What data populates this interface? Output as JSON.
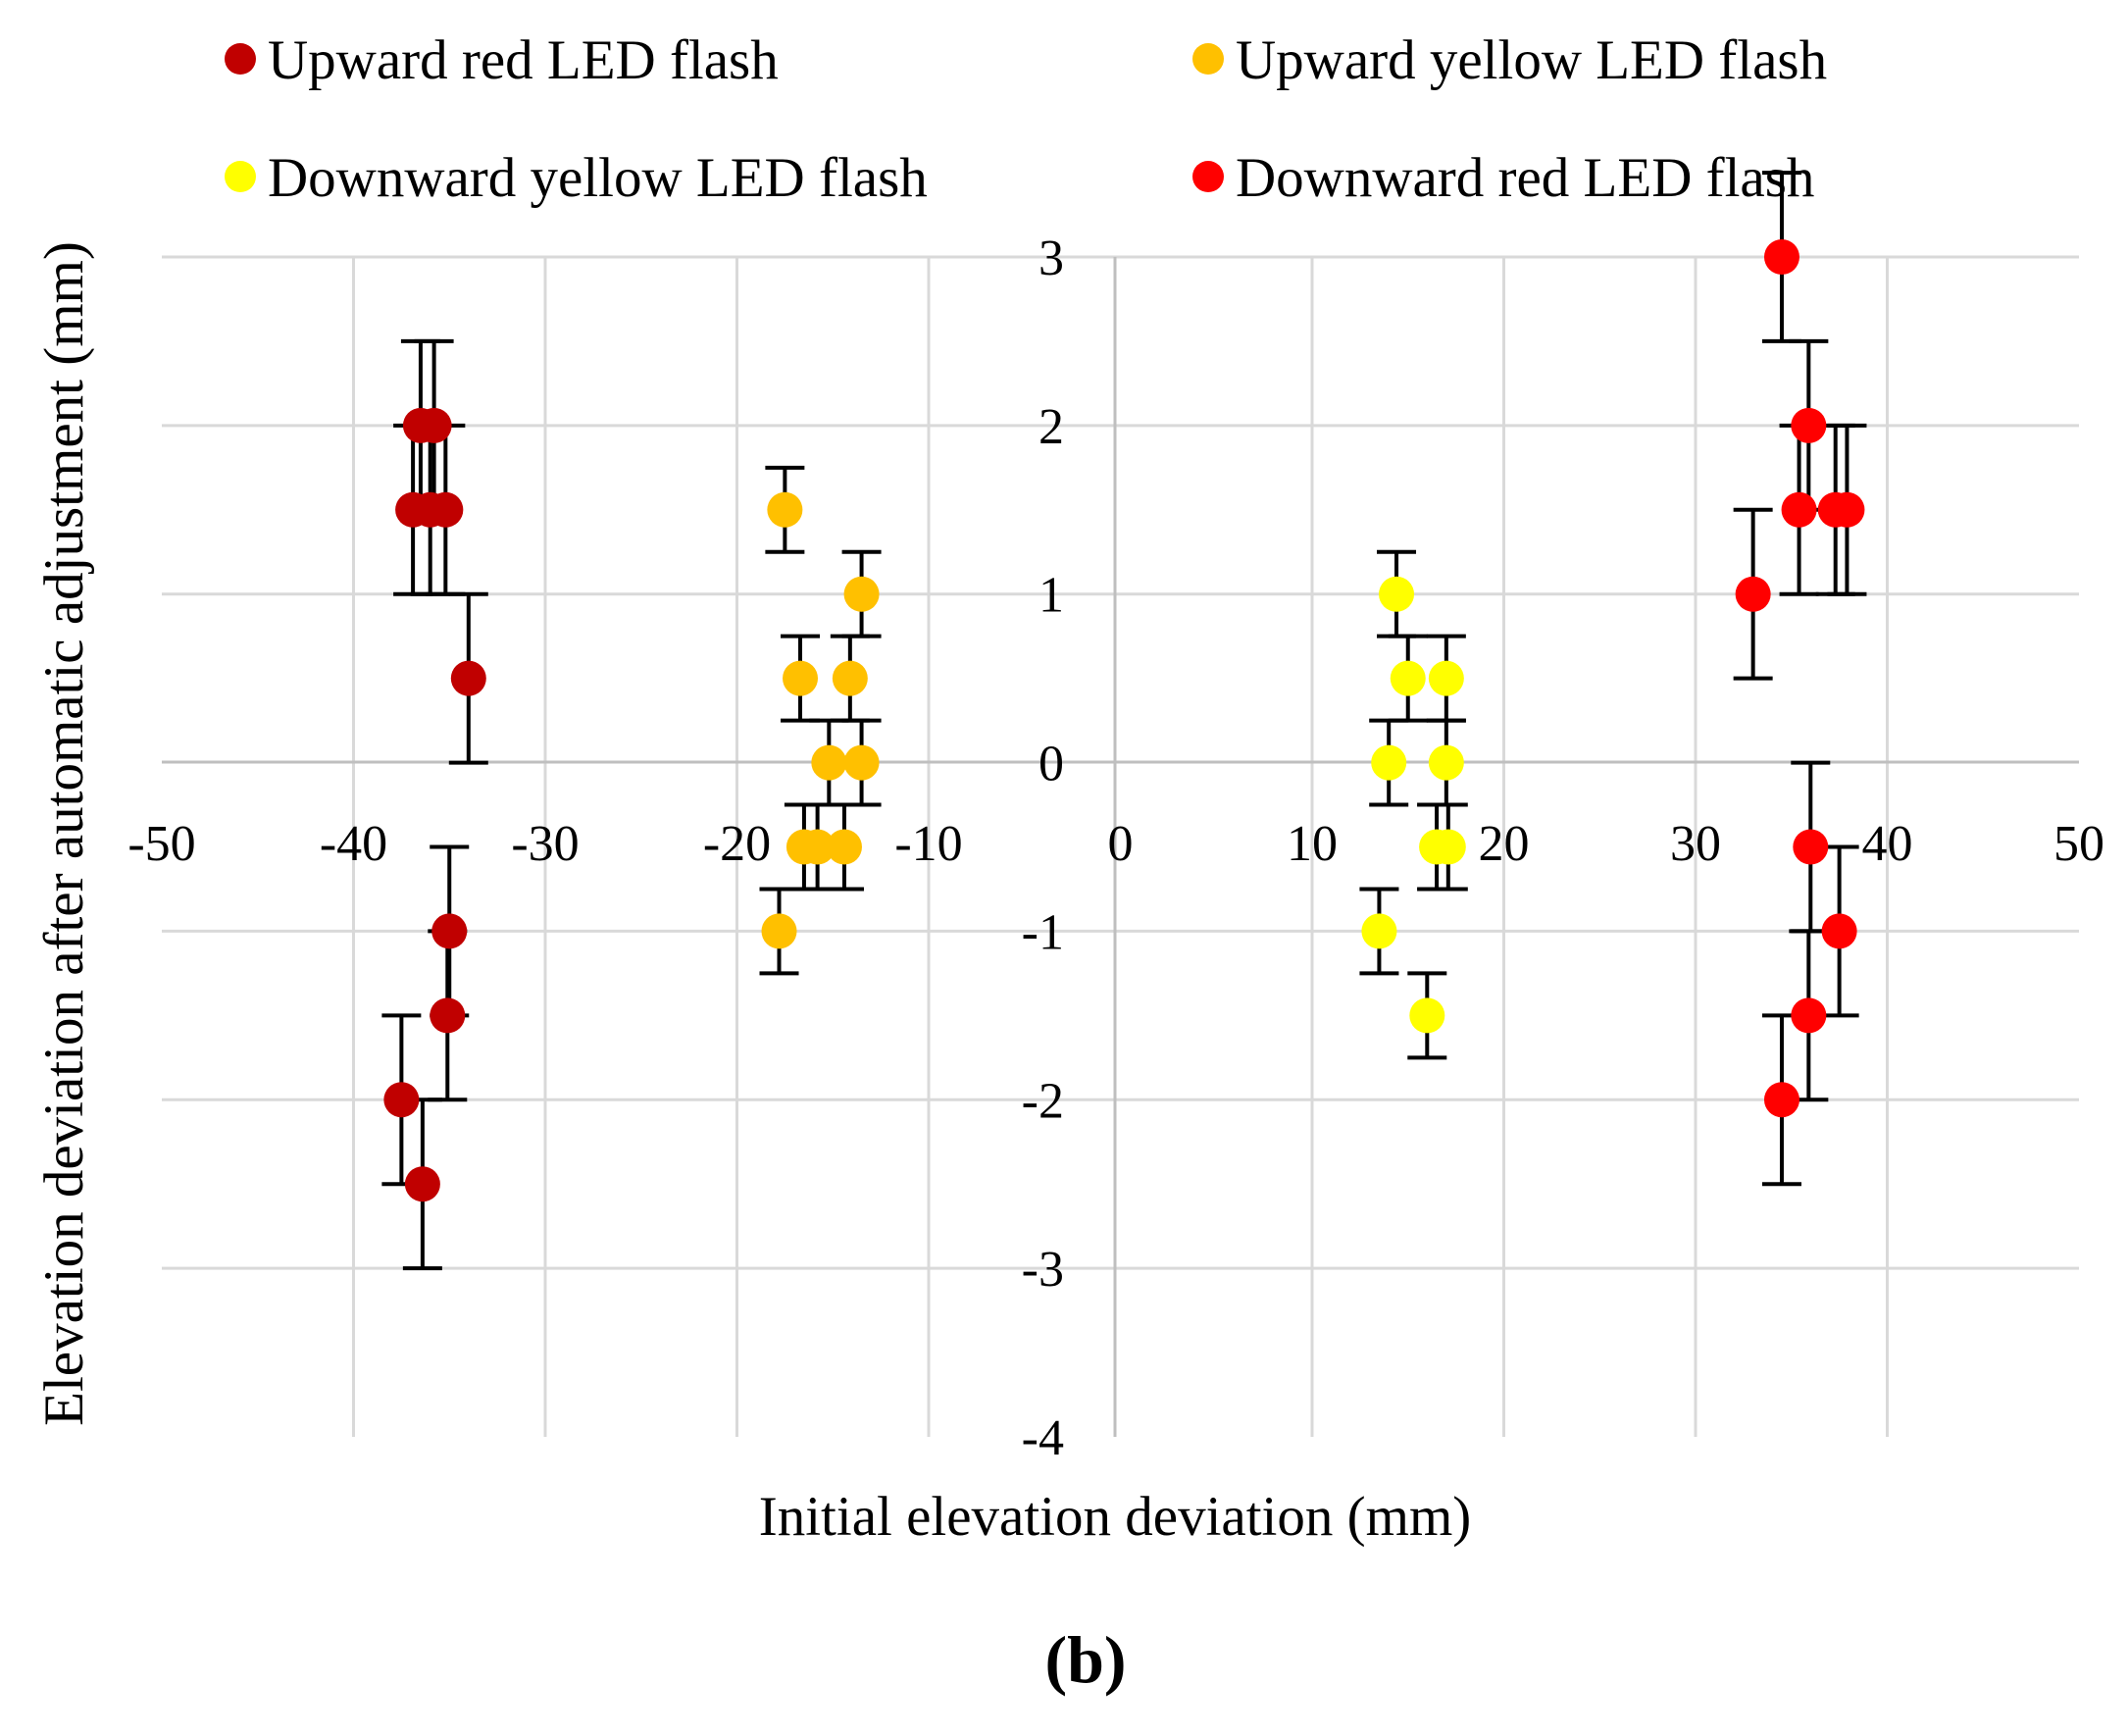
{
  "chart_data": {
    "type": "scatter",
    "title": "",
    "xlabel": "Initial elevation deviation (mm)",
    "ylabel": "Elevation deviation after automatic adjustment (mm)",
    "xlim": [
      -50,
      50
    ],
    "ylim": [
      -4,
      3
    ],
    "x_ticks": [
      "-50",
      "-40",
      "-30",
      "-20",
      "-10",
      "0",
      "10",
      "20",
      "30",
      "40",
      "50"
    ],
    "y_ticks": [
      "3",
      "2",
      "1",
      "0",
      "-1",
      "-2",
      "-3",
      "-4"
    ],
    "x_tick_values": [
      -50,
      -40,
      -30,
      -20,
      -10,
      0,
      10,
      20,
      30,
      40,
      50
    ],
    "y_tick_values": [
      3,
      2,
      1,
      0,
      -1,
      -2,
      -3,
      -4
    ],
    "grid": true,
    "legend_position": "top",
    "panel_label": "(b)",
    "series": [
      {
        "name": "Upward red LED flash",
        "color": "#c00000",
        "points": [
          {
            "x": -36.5,
            "y": 2.0,
            "err": 0.5
          },
          {
            "x": -35.8,
            "y": 2.0,
            "err": 0.5
          },
          {
            "x": -36.9,
            "y": 1.5,
            "err": 0.5
          },
          {
            "x": -36.0,
            "y": 1.5,
            "err": 0.5
          },
          {
            "x": -35.2,
            "y": 1.5,
            "err": 0.5
          },
          {
            "x": -34.0,
            "y": 0.5,
            "err": 0.5
          },
          {
            "x": -35.0,
            "y": -1.0,
            "err": 0.5
          },
          {
            "x": -35.1,
            "y": -1.5,
            "err": 0.5
          },
          {
            "x": -37.5,
            "y": -2.0,
            "err": 0.5
          },
          {
            "x": -36.4,
            "y": -2.5,
            "err": 0.5
          }
        ]
      },
      {
        "name": "Upward yellow LED flash",
        "color": "#ffc000",
        "points": [
          {
            "x": -17.5,
            "y": 1.5,
            "err": 0.25
          },
          {
            "x": -13.5,
            "y": 1.0,
            "err": 0.25
          },
          {
            "x": -16.7,
            "y": 0.5,
            "err": 0.25
          },
          {
            "x": -14.1,
            "y": 0.5,
            "err": 0.25
          },
          {
            "x": -15.2,
            "y": 0.0,
            "err": 0.25
          },
          {
            "x": -13.5,
            "y": 0.0,
            "err": 0.25
          },
          {
            "x": -16.5,
            "y": -0.5,
            "err": 0.25
          },
          {
            "x": -15.8,
            "y": -0.5,
            "err": 0.25
          },
          {
            "x": -14.4,
            "y": -0.5,
            "err": 0.25
          },
          {
            "x": -17.8,
            "y": -1.0,
            "err": 0.25
          }
        ]
      },
      {
        "name": "Downward yellow LED flash",
        "color": "#ffff00",
        "points": [
          {
            "x": 14.4,
            "y": 1.0,
            "err": 0.25
          },
          {
            "x": 15.0,
            "y": 0.5,
            "err": 0.25
          },
          {
            "x": 17.0,
            "y": 0.5,
            "err": 0.25
          },
          {
            "x": 14.0,
            "y": 0.0,
            "err": 0.25
          },
          {
            "x": 17.0,
            "y": 0.0,
            "err": 0.25
          },
          {
            "x": 16.5,
            "y": -0.5,
            "err": 0.25
          },
          {
            "x": 17.1,
            "y": -0.5,
            "err": 0.25
          },
          {
            "x": 13.5,
            "y": -1.0,
            "err": 0.25
          },
          {
            "x": 16.0,
            "y": -1.5,
            "err": 0.25
          }
        ]
      },
      {
        "name": "Downward red LED flash",
        "color": "#ff0000",
        "points": [
          {
            "x": 34.5,
            "y": 3.0,
            "err": 0.5
          },
          {
            "x": 35.9,
            "y": 2.0,
            "err": 0.5
          },
          {
            "x": 35.4,
            "y": 1.5,
            "err": 0.5
          },
          {
            "x": 37.3,
            "y": 1.5,
            "err": 0.5
          },
          {
            "x": 37.9,
            "y": 1.5,
            "err": 0.5
          },
          {
            "x": 33.0,
            "y": 1.0,
            "err": 0.5
          },
          {
            "x": 36.0,
            "y": -0.5,
            "err": 0.5
          },
          {
            "x": 37.5,
            "y": -1.0,
            "err": 0.5
          },
          {
            "x": 35.9,
            "y": -1.5,
            "err": 0.5
          },
          {
            "x": 34.5,
            "y": -2.0,
            "err": 0.5
          }
        ]
      }
    ]
  }
}
